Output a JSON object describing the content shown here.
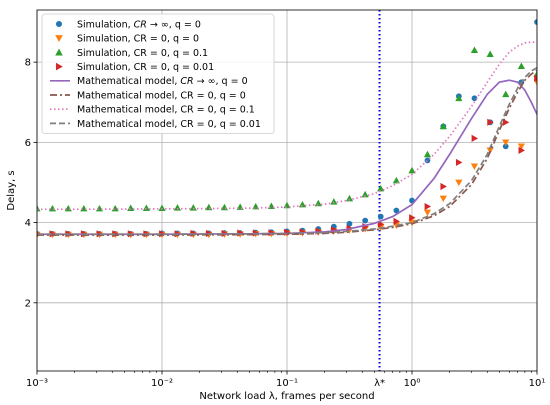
{
  "chart_data": {
    "type": "line",
    "title": "",
    "xlabel": "Network load λ, frames per second",
    "ylabel": "Delay, s",
    "xscale": "log",
    "xlim": [
      0.001,
      10
    ],
    "ylim": [
      0.3,
      9.3
    ],
    "grid": true,
    "legend_position": "top-left",
    "x_tick_labels": [
      "10⁻³",
      "10⁻²",
      "10⁻¹",
      "10⁰",
      "10¹"
    ],
    "y_tick_labels": [
      "2",
      "4",
      "6",
      "8"
    ],
    "y_ticks": [
      2,
      4,
      6,
      8
    ],
    "vline": {
      "x": 0.55,
      "label": "λ*",
      "color": "#0000ee"
    },
    "series": [
      {
        "name": "Simulation, CR → ∞, q = 0",
        "kind": "marker",
        "marker": "circle",
        "color": "#1f77b4",
        "x": [
          0.001,
          0.00133,
          0.00178,
          0.00237,
          0.00316,
          0.00422,
          0.00562,
          0.0075,
          0.01,
          0.0133,
          0.0178,
          0.0237,
          0.0316,
          0.0422,
          0.0562,
          0.075,
          0.1,
          0.133,
          0.178,
          0.237,
          0.316,
          0.422,
          0.562,
          0.75,
          1.0,
          1.33,
          1.78,
          2.37,
          3.16,
          4.22,
          5.62,
          7.5,
          10
        ],
        "y": [
          3.72,
          3.72,
          3.72,
          3.72,
          3.72,
          3.72,
          3.72,
          3.72,
          3.73,
          3.73,
          3.73,
          3.73,
          3.74,
          3.74,
          3.75,
          3.76,
          3.78,
          3.8,
          3.84,
          3.9,
          3.97,
          4.05,
          4.15,
          4.3,
          4.55,
          5.55,
          6.4,
          7.15,
          7.1,
          6.5,
          5.9,
          7.5,
          9.0
        ]
      },
      {
        "name": "Simulation, CR = 0, q = 0",
        "kind": "marker",
        "marker": "triangle-down",
        "color": "#ff7f0e",
        "x": [
          0.001,
          0.00133,
          0.00178,
          0.00237,
          0.00316,
          0.00422,
          0.00562,
          0.0075,
          0.01,
          0.0133,
          0.0178,
          0.0237,
          0.0316,
          0.0422,
          0.0562,
          0.075,
          0.1,
          0.133,
          0.178,
          0.237,
          0.316,
          0.422,
          0.562,
          0.75,
          1.0,
          1.33,
          1.78,
          2.37,
          3.16,
          4.22,
          5.62,
          7.5,
          10
        ],
        "y": [
          3.7,
          3.7,
          3.7,
          3.7,
          3.7,
          3.7,
          3.7,
          3.7,
          3.7,
          3.7,
          3.7,
          3.7,
          3.71,
          3.71,
          3.72,
          3.72,
          3.73,
          3.74,
          3.76,
          3.78,
          3.81,
          3.84,
          3.88,
          3.93,
          4.0,
          4.25,
          4.6,
          5.0,
          5.4,
          5.8,
          6.0,
          5.9,
          7.5
        ]
      },
      {
        "name": "Simulation, CR = 0, q = 0.1",
        "kind": "marker",
        "marker": "triangle-up",
        "color": "#2ca02c",
        "x": [
          0.001,
          0.00133,
          0.00178,
          0.00237,
          0.00316,
          0.00422,
          0.00562,
          0.0075,
          0.01,
          0.0133,
          0.0178,
          0.0237,
          0.0316,
          0.0422,
          0.0562,
          0.075,
          0.1,
          0.133,
          0.178,
          0.237,
          0.316,
          0.422,
          0.562,
          0.75,
          1.0,
          1.33,
          1.78,
          2.37,
          3.16,
          4.22,
          5.62,
          7.5,
          10
        ],
        "y": [
          4.35,
          4.35,
          4.35,
          4.35,
          4.35,
          4.35,
          4.36,
          4.36,
          4.36,
          4.37,
          4.37,
          4.38,
          4.38,
          4.39,
          4.4,
          4.41,
          4.43,
          4.45,
          4.48,
          4.52,
          4.6,
          4.7,
          4.85,
          5.05,
          5.3,
          5.7,
          6.4,
          7.1,
          8.3,
          8.2,
          7.2,
          7.9,
          7.7
        ]
      },
      {
        "name": "Simulation, CR = 0, q = 0.01",
        "kind": "marker",
        "marker": "triangle-right",
        "color": "#d62728",
        "x": [
          0.001,
          0.00133,
          0.00178,
          0.00237,
          0.00316,
          0.00422,
          0.00562,
          0.0075,
          0.01,
          0.0133,
          0.0178,
          0.0237,
          0.0316,
          0.0422,
          0.0562,
          0.075,
          0.1,
          0.133,
          0.178,
          0.237,
          0.316,
          0.422,
          0.562,
          0.75,
          1.0,
          1.33,
          1.78,
          2.37,
          3.16,
          4.22,
          5.62,
          7.5,
          10
        ],
        "y": [
          3.72,
          3.72,
          3.72,
          3.72,
          3.72,
          3.72,
          3.72,
          3.72,
          3.72,
          3.72,
          3.73,
          3.73,
          3.73,
          3.74,
          3.74,
          3.75,
          3.76,
          3.77,
          3.79,
          3.82,
          3.86,
          3.9,
          3.96,
          4.03,
          4.12,
          4.4,
          4.9,
          5.5,
          6.1,
          6.5,
          6.5,
          5.8,
          7.6
        ]
      },
      {
        "name": "Mathematical model, CR → ∞, q = 0",
        "kind": "line",
        "dash": "solid",
        "color": "#9467bd",
        "x": [
          0.001,
          0.01,
          0.05,
          0.1,
          0.2,
          0.3,
          0.5,
          0.7,
          1.0,
          1.5,
          2.0,
          3.0,
          4.0,
          5.0,
          6.0,
          7.0,
          8.0,
          9.0,
          10
        ],
        "y": [
          3.71,
          3.71,
          3.72,
          3.73,
          3.77,
          3.83,
          3.98,
          4.15,
          4.45,
          5.1,
          5.7,
          6.6,
          7.2,
          7.5,
          7.55,
          7.5,
          7.3,
          7.0,
          6.7
        ]
      },
      {
        "name": "Mathematical model, CR = 0, q = 0",
        "kind": "line",
        "dash": "dashdot",
        "color": "#8c564b",
        "x": [
          0.001,
          0.01,
          0.05,
          0.1,
          0.2,
          0.3,
          0.5,
          0.7,
          1.0,
          1.5,
          2.0,
          3.0,
          4.0,
          5.0,
          6.0,
          7.0,
          8.0,
          9.0,
          10
        ],
        "y": [
          3.69,
          3.69,
          3.7,
          3.71,
          3.73,
          3.76,
          3.82,
          3.88,
          3.97,
          4.17,
          4.4,
          4.95,
          5.6,
          6.3,
          6.85,
          7.25,
          7.55,
          7.7,
          7.8
        ]
      },
      {
        "name": "Mathematical model, CR = 0, q = 0.1",
        "kind": "line",
        "dash": "dotted",
        "color": "#e377c2",
        "x": [
          0.001,
          0.01,
          0.05,
          0.1,
          0.2,
          0.3,
          0.5,
          0.7,
          1.0,
          1.5,
          2.0,
          3.0,
          4.0,
          5.0,
          6.0,
          7.0,
          8.0,
          9.0,
          10
        ],
        "y": [
          4.33,
          4.34,
          4.36,
          4.39,
          4.46,
          4.55,
          4.72,
          4.92,
          5.2,
          5.7,
          6.15,
          6.9,
          7.5,
          7.95,
          8.25,
          8.4,
          8.48,
          8.5,
          8.5
        ]
      },
      {
        "name": "Mathematical model, CR = 0, q = 0.01",
        "kind": "line",
        "dash": "dashed",
        "color": "#7f7f7f",
        "x": [
          0.001,
          0.01,
          0.05,
          0.1,
          0.2,
          0.3,
          0.5,
          0.7,
          1.0,
          1.5,
          2.0,
          3.0,
          4.0,
          5.0,
          6.0,
          7.0,
          8.0,
          9.0,
          10
        ],
        "y": [
          3.71,
          3.71,
          3.72,
          3.73,
          3.75,
          3.78,
          3.84,
          3.91,
          4.0,
          4.22,
          4.47,
          5.05,
          5.7,
          6.4,
          6.95,
          7.35,
          7.62,
          7.78,
          7.86
        ]
      }
    ]
  }
}
